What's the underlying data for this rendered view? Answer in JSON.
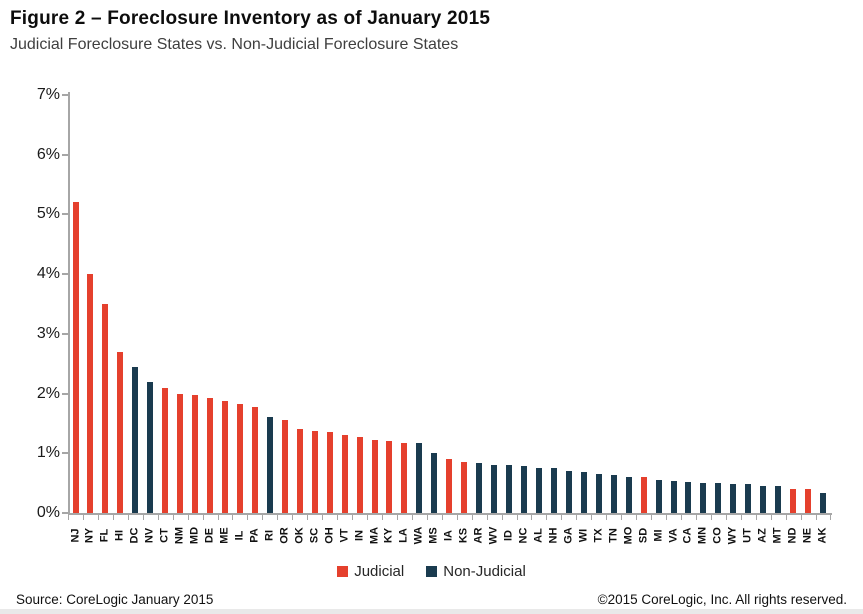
{
  "header": {
    "title": "Figure 2 – Foreclosure Inventory as of January 2015",
    "subtitle": "Judicial Foreclosure States vs. Non-Judicial Foreclosure States"
  },
  "legend": {
    "items": [
      {
        "label": "Judicial",
        "color": "#e5402d"
      },
      {
        "label": "Non-Judicial",
        "color": "#1a3b4f"
      }
    ]
  },
  "footer": {
    "source": "Source: CoreLogic January 2015",
    "copyright": "©2015 CoreLogic, Inc. All rights reserved."
  },
  "chart_data": {
    "type": "bar",
    "title": "Figure 2 – Foreclosure Inventory as of January 2015",
    "subtitle": "Judicial Foreclosure States vs. Non-Judicial Foreclosure States",
    "xlabel": "",
    "ylabel": "",
    "ylim": [
      0,
      7
    ],
    "yticks": [
      "0%",
      "1%",
      "2%",
      "3%",
      "4%",
      "5%",
      "6%",
      "7%"
    ],
    "grid": false,
    "legend_position": "bottom",
    "series_names": [
      "Judicial",
      "Non-Judicial"
    ],
    "points": [
      {
        "state": "NJ",
        "value": 5.2,
        "series": "Judicial"
      },
      {
        "state": "NY",
        "value": 4.0,
        "series": "Judicial"
      },
      {
        "state": "FL",
        "value": 3.5,
        "series": "Judicial"
      },
      {
        "state": "HI",
        "value": 2.7,
        "series": "Judicial"
      },
      {
        "state": "DC",
        "value": 2.45,
        "series": "Non-Judicial"
      },
      {
        "state": "NV",
        "value": 2.2,
        "series": "Non-Judicial"
      },
      {
        "state": "CT",
        "value": 2.1,
        "series": "Judicial"
      },
      {
        "state": "NM",
        "value": 2.0,
        "series": "Judicial"
      },
      {
        "state": "MD",
        "value": 1.97,
        "series": "Judicial"
      },
      {
        "state": "DE",
        "value": 1.92,
        "series": "Judicial"
      },
      {
        "state": "ME",
        "value": 1.87,
        "series": "Judicial"
      },
      {
        "state": "IL",
        "value": 1.83,
        "series": "Judicial"
      },
      {
        "state": "PA",
        "value": 1.78,
        "series": "Judicial"
      },
      {
        "state": "RI",
        "value": 1.6,
        "series": "Non-Judicial"
      },
      {
        "state": "OR",
        "value": 1.56,
        "series": "Judicial"
      },
      {
        "state": "OK",
        "value": 1.41,
        "series": "Judicial"
      },
      {
        "state": "SC",
        "value": 1.38,
        "series": "Judicial"
      },
      {
        "state": "OH",
        "value": 1.36,
        "series": "Judicial"
      },
      {
        "state": "VT",
        "value": 1.3,
        "series": "Judicial"
      },
      {
        "state": "IN",
        "value": 1.28,
        "series": "Judicial"
      },
      {
        "state": "MA",
        "value": 1.23,
        "series": "Judicial"
      },
      {
        "state": "KY",
        "value": 1.21,
        "series": "Judicial"
      },
      {
        "state": "LA",
        "value": 1.18,
        "series": "Judicial"
      },
      {
        "state": "WA",
        "value": 1.17,
        "series": "Non-Judicial"
      },
      {
        "state": "MS",
        "value": 1.01,
        "series": "Non-Judicial"
      },
      {
        "state": "IA",
        "value": 0.9,
        "series": "Judicial"
      },
      {
        "state": "KS",
        "value": 0.86,
        "series": "Judicial"
      },
      {
        "state": "AR",
        "value": 0.84,
        "series": "Non-Judicial"
      },
      {
        "state": "WV",
        "value": 0.81,
        "series": "Non-Judicial"
      },
      {
        "state": "ID",
        "value": 0.8,
        "series": "Non-Judicial"
      },
      {
        "state": "NC",
        "value": 0.79,
        "series": "Non-Judicial"
      },
      {
        "state": "AL",
        "value": 0.76,
        "series": "Non-Judicial"
      },
      {
        "state": "NH",
        "value": 0.75,
        "series": "Non-Judicial"
      },
      {
        "state": "GA",
        "value": 0.71,
        "series": "Non-Judicial"
      },
      {
        "state": "WI",
        "value": 0.68,
        "series": "Non-Judicial"
      },
      {
        "state": "TX",
        "value": 0.66,
        "series": "Non-Judicial"
      },
      {
        "state": "TN",
        "value": 0.64,
        "series": "Non-Judicial"
      },
      {
        "state": "MO",
        "value": 0.61,
        "series": "Non-Judicial"
      },
      {
        "state": "SD",
        "value": 0.6,
        "series": "Judicial"
      },
      {
        "state": "MI",
        "value": 0.55,
        "series": "Non-Judicial"
      },
      {
        "state": "VA",
        "value": 0.54,
        "series": "Non-Judicial"
      },
      {
        "state": "CA",
        "value": 0.52,
        "series": "Non-Judicial"
      },
      {
        "state": "MN",
        "value": 0.51,
        "series": "Non-Judicial"
      },
      {
        "state": "CO",
        "value": 0.5,
        "series": "Non-Judicial"
      },
      {
        "state": "WY",
        "value": 0.49,
        "series": "Non-Judicial"
      },
      {
        "state": "UT",
        "value": 0.48,
        "series": "Non-Judicial"
      },
      {
        "state": "AZ",
        "value": 0.46,
        "series": "Non-Judicial"
      },
      {
        "state": "MT",
        "value": 0.45,
        "series": "Non-Judicial"
      },
      {
        "state": "ND",
        "value": 0.41,
        "series": "Judicial"
      },
      {
        "state": "NE",
        "value": 0.4,
        "series": "Judicial"
      },
      {
        "state": "AK",
        "value": 0.33,
        "series": "Non-Judicial"
      }
    ]
  }
}
